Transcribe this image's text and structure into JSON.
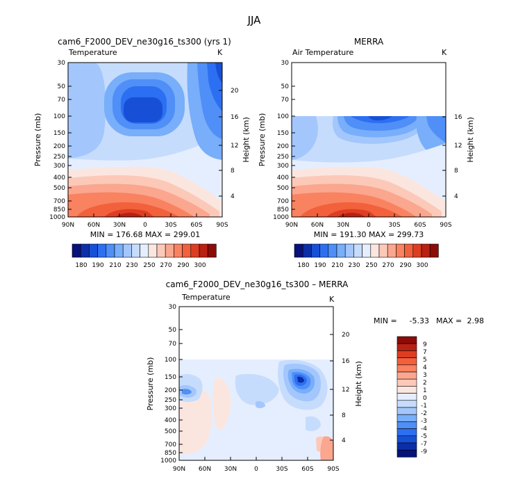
{
  "page": {
    "title": "JJA"
  },
  "colors": {
    "scale": [
      "#08127a",
      "#0c2fa8",
      "#1750d6",
      "#2d6ff2",
      "#4f8ff7",
      "#78aefa",
      "#a3c7fc",
      "#c6dcfd",
      "#e5eefe",
      "#fbe6df",
      "#fcc9b9",
      "#fba68e",
      "#f98260",
      "#f2603c",
      "#dd3e22",
      "#b92112",
      "#8c0c08"
    ],
    "background": "#ffffff"
  },
  "chart_data": [
    {
      "type": "heatmap",
      "title": "cam6_F2000_DEV_ne30g16_ts300 (yrs 1)",
      "variable_label": "Temperature",
      "units": "K",
      "ylabel": "Pressure (mb)",
      "y2label": "Height (km)",
      "x_ticks": [
        "90N",
        "60N",
        "30N",
        "0",
        "30S",
        "60S",
        "90S"
      ],
      "y_ticks": [
        "30",
        "50",
        "70",
        "100",
        "150",
        "200",
        "250",
        "300",
        "400",
        "500",
        "700",
        "850",
        "1000"
      ],
      "y2_ticks": [
        "20",
        "16",
        "12",
        "8",
        "4"
      ],
      "stats": "MIN = 176.68   MAX = 299.01",
      "colorbar_labels": [
        "180",
        "190",
        "210",
        "230",
        "250",
        "270",
        "290",
        "300"
      ]
    },
    {
      "type": "heatmap",
      "title": "MERRA",
      "variable_label": "Air Temperature",
      "units": "K",
      "ylabel": "Pressure (mb)",
      "y2label": "Height (km)",
      "x_ticks": [
        "90N",
        "60N",
        "30N",
        "0",
        "30S",
        "60S",
        "90S"
      ],
      "y_ticks": [
        "30",
        "50",
        "70",
        "100",
        "150",
        "200",
        "250",
        "300",
        "400",
        "500",
        "700",
        "850",
        "1000"
      ],
      "y2_ticks": [
        "16",
        "12",
        "8",
        "4"
      ],
      "stats": "MIN = 191.30   MAX = 299.73",
      "colorbar_labels": [
        "180",
        "190",
        "210",
        "230",
        "250",
        "270",
        "290",
        "300"
      ]
    },
    {
      "type": "heatmap",
      "title": "cam6_F2000_DEV_ne30g16_ts300 – MERRA",
      "variable_label": "Temperature",
      "units": "K",
      "ylabel": "Pressure (mb)",
      "y2label": "Height (km)",
      "x_ticks": [
        "90N",
        "60N",
        "30N",
        "0",
        "30S",
        "60S",
        "90S"
      ],
      "y_ticks": [
        "30",
        "50",
        "70",
        "100",
        "150",
        "200",
        "250",
        "300",
        "400",
        "500",
        "700",
        "850",
        "1000"
      ],
      "y2_ticks": [
        "20",
        "16",
        "12",
        "8",
        "4"
      ],
      "stats_min_label": "MIN =",
      "stats_min": "-5.33",
      "stats_max_label": "MAX =",
      "stats_max": "2.98",
      "colorbar_labels": [
        "9",
        "7",
        "5",
        "4",
        "3",
        "2",
        "1",
        "0",
        "-1",
        "-2",
        "-3",
        "-4",
        "-5",
        "-7",
        "-9"
      ]
    }
  ]
}
